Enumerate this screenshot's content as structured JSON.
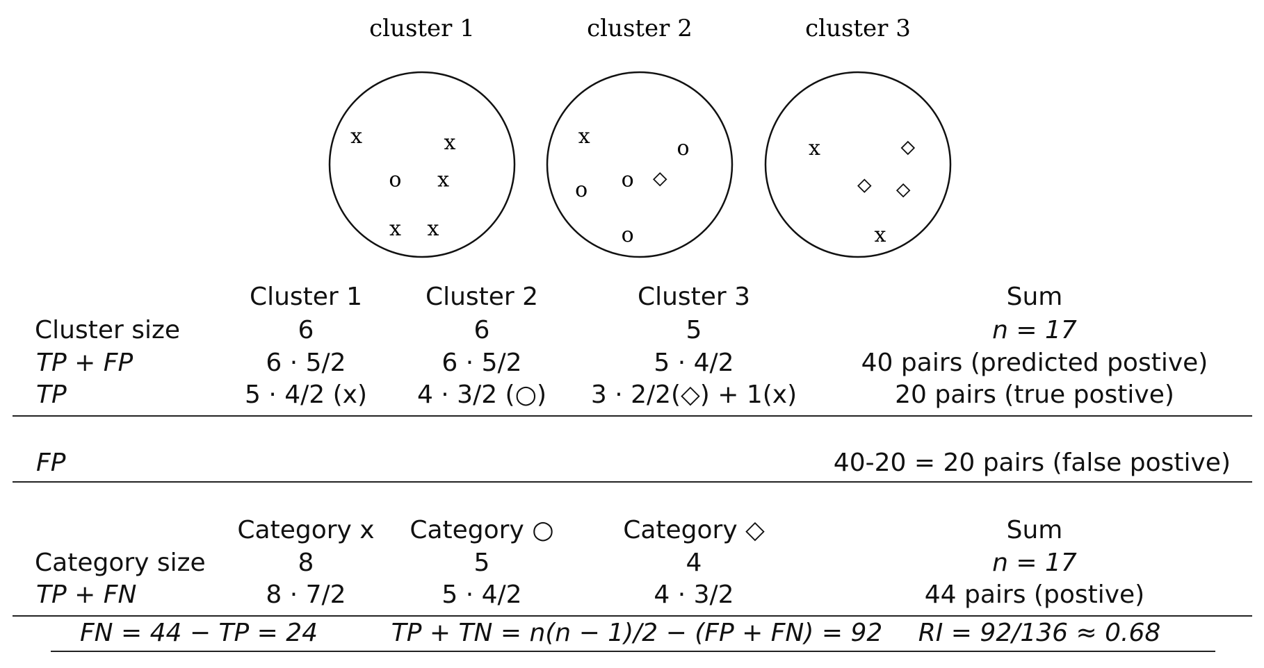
{
  "clusters": [
    {
      "title": "cluster 1",
      "points": [
        {
          "sym": "x",
          "dx": -0.71,
          "dy": -0.31
        },
        {
          "sym": "x",
          "dx": 0.3,
          "dy": -0.24
        },
        {
          "sym": "o",
          "dx": -0.29,
          "dy": 0.16
        },
        {
          "sym": "x",
          "dx": 0.23,
          "dy": 0.16
        },
        {
          "sym": "x",
          "dx": -0.29,
          "dy": 0.69
        },
        {
          "sym": "x",
          "dx": 0.12,
          "dy": 0.69
        }
      ]
    },
    {
      "title": "cluster 2",
      "points": [
        {
          "sym": "x",
          "dx": -0.6,
          "dy": -0.31
        },
        {
          "sym": "o",
          "dx": 0.47,
          "dy": -0.18
        },
        {
          "sym": "o",
          "dx": -0.63,
          "dy": 0.27
        },
        {
          "sym": "o",
          "dx": -0.13,
          "dy": 0.16
        },
        {
          "sym": "d",
          "dx": 0.22,
          "dy": 0.16
        },
        {
          "sym": "o",
          "dx": -0.13,
          "dy": 0.76
        }
      ]
    },
    {
      "title": "cluster 3",
      "points": [
        {
          "sym": "x",
          "dx": -0.47,
          "dy": -0.18
        },
        {
          "sym": "d",
          "dx": 0.54,
          "dy": -0.18
        },
        {
          "sym": "d",
          "dx": 0.07,
          "dy": 0.23
        },
        {
          "sym": "d",
          "dx": 0.49,
          "dy": 0.28
        },
        {
          "sym": "x",
          "dx": 0.24,
          "dy": 0.76
        }
      ]
    }
  ],
  "table1": {
    "header": [
      "Cluster 1",
      "Cluster 2",
      "Cluster 3",
      "Sum"
    ],
    "cluster_size": {
      "label": "Cluster size",
      "values": [
        "6",
        "6",
        "5"
      ],
      "sum": "n = 17"
    },
    "tp_fp": {
      "label": "TP + FP",
      "values": [
        "6 · 5/2",
        "6 · 5/2",
        "5 · 4/2"
      ],
      "sum": "40 pairs (predicted postive)"
    },
    "tp": {
      "label": "TP",
      "values": [
        "5 · 4/2 (x)",
        "4 · 3/2 (○)",
        "3 · 2/2(◇) + 1(x)"
      ],
      "sum": "20 pairs (true postive)"
    }
  },
  "fp_row": {
    "label": "FP",
    "value": "40-20 = 20 pairs (false postive)"
  },
  "table2": {
    "header": [
      "Category x",
      "Category ○",
      "Category ◇",
      "Sum"
    ],
    "category_size": {
      "label": "Category size",
      "values": [
        "8",
        "5",
        "4"
      ],
      "sum": "n = 17"
    },
    "tp_fn": {
      "label": "TP + FN",
      "values": [
        "8 · 7/2",
        "5 · 4/2",
        "4 · 3/2"
      ],
      "sum": "44 pairs (postive)"
    }
  },
  "result_row": {
    "fn": "FN = 44 − TP = 24",
    "tp_tn": "TP + TN = n(n − 1)/2 − (FP + FN) = 92",
    "ri": "RI = 92/136 ≈ 0.68"
  }
}
